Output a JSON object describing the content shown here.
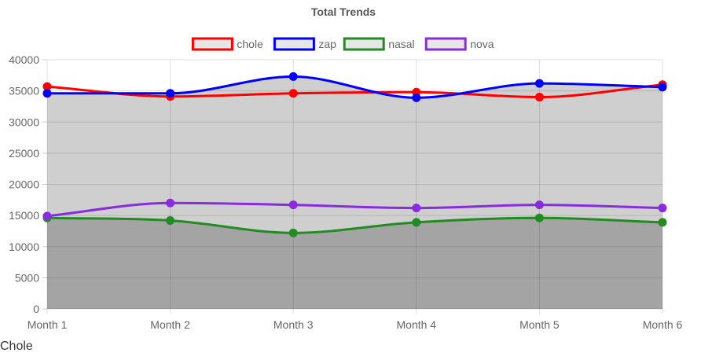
{
  "chart_data": {
    "type": "line",
    "title": "Total Trends",
    "categories": [
      "Month 1",
      "Month 2",
      "Month 3",
      "Month 4",
      "Month 5",
      "Month 6"
    ],
    "series": [
      {
        "name": "chole",
        "color": "#ff0000",
        "values": [
          35700,
          34100,
          34600,
          34800,
          34000,
          36000
        ]
      },
      {
        "name": "zap",
        "color": "#0000ff",
        "values": [
          34600,
          34600,
          37300,
          33900,
          36200,
          35600
        ]
      },
      {
        "name": "nasal",
        "color": "#228b22",
        "values": [
          14600,
          14200,
          12200,
          13900,
          14600,
          13900
        ]
      },
      {
        "name": "nova",
        "color": "#8a2be2",
        "values": [
          14900,
          17000,
          16700,
          16200,
          16700,
          16200
        ]
      }
    ],
    "ylim": [
      0,
      40000
    ],
    "yticks": [
      0,
      5000,
      10000,
      15000,
      20000,
      25000,
      30000,
      35000,
      40000
    ],
    "legend": "top",
    "grid": true,
    "fill_colors": {
      "upper": "#cfcfcf",
      "lower": "#a4a4a4"
    }
  },
  "caption": "Chole"
}
